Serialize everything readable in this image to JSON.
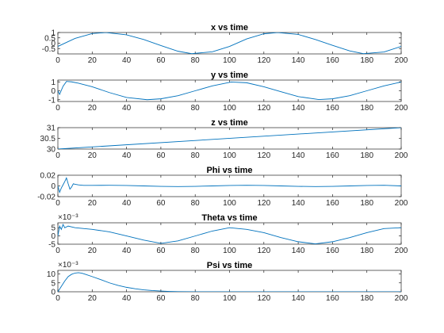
{
  "chart_data": [
    {
      "type": "line",
      "title": "x vs time",
      "xlim": [
        0,
        200
      ],
      "ylim": [
        -1,
        1
      ],
      "xticks": [
        "0",
        "20",
        "40",
        "60",
        "80",
        "100",
        "120",
        "140",
        "160",
        "180",
        "200"
      ],
      "yticks": [
        {
          "v": -0.5,
          "label": "-0.5"
        },
        {
          "v": 0,
          "label": "0"
        },
        {
          "v": 0.5,
          "label": "0.5"
        },
        {
          "v": 1,
          "label": "1"
        }
      ],
      "multiplier": "",
      "x": [
        0,
        10,
        20,
        28,
        40,
        50,
        60,
        70,
        78,
        90,
        100,
        110,
        120,
        128,
        140,
        150,
        160,
        170,
        178,
        190,
        200
      ],
      "y": [
        -0.3,
        0.45,
        0.9,
        1.0,
        0.78,
        0.35,
        -0.22,
        -0.75,
        -0.98,
        -0.8,
        -0.3,
        0.4,
        0.88,
        1.0,
        0.82,
        0.35,
        -0.2,
        -0.72,
        -0.98,
        -0.82,
        -0.3
      ],
      "color": "#0072bd"
    },
    {
      "type": "line",
      "title": "y vs time",
      "xlim": [
        0,
        200
      ],
      "ylim": [
        -1.2,
        1.2
      ],
      "xticks": [
        "0",
        "20",
        "40",
        "60",
        "80",
        "100",
        "120",
        "140",
        "160",
        "180",
        "200"
      ],
      "yticks": [
        {
          "v": -1,
          "label": "-1"
        },
        {
          "v": 0,
          "label": "0"
        },
        {
          "v": 1,
          "label": "1"
        }
      ],
      "multiplier": "",
      "x": [
        0,
        1,
        3,
        5,
        8,
        12,
        20,
        30,
        40,
        52,
        60,
        70,
        80,
        90,
        101,
        110,
        120,
        130,
        140,
        152,
        160,
        170,
        180,
        190,
        200
      ],
      "y": [
        0,
        -0.4,
        0.5,
        1.05,
        1.0,
        0.85,
        0.45,
        -0.2,
        -0.75,
        -1.0,
        -0.9,
        -0.55,
        0.0,
        0.55,
        0.98,
        0.9,
        0.45,
        -0.1,
        -0.65,
        -0.98,
        -0.9,
        -0.55,
        0.0,
        0.55,
        0.98
      ],
      "color": "#0072bd"
    },
    {
      "type": "line",
      "title": "z vs  time",
      "xlim": [
        0,
        200
      ],
      "ylim": [
        30,
        31
      ],
      "xticks": [
        "0",
        "20",
        "40",
        "60",
        "80",
        "100",
        "120",
        "140",
        "160",
        "180",
        "200"
      ],
      "yticks": [
        {
          "v": 30,
          "label": "30"
        },
        {
          "v": 30.5,
          "label": "30.5"
        },
        {
          "v": 31,
          "label": "31"
        }
      ],
      "multiplier": "",
      "x": [
        0,
        200
      ],
      "y": [
        30,
        31
      ],
      "color": "#0072bd"
    },
    {
      "type": "line",
      "title": "Phi vs time",
      "xlim": [
        0,
        200
      ],
      "ylim": [
        -0.02,
        0.02
      ],
      "xticks": [
        "0",
        "20",
        "40",
        "60",
        "80",
        "100",
        "120",
        "140",
        "160",
        "180",
        "200"
      ],
      "yticks": [
        {
          "v": -0.02,
          "label": "-0.02"
        },
        {
          "v": 0,
          "label": "0"
        },
        {
          "v": 0.02,
          "label": "0.02"
        }
      ],
      "multiplier": "",
      "x": [
        0,
        1,
        2,
        3,
        4,
        5,
        6,
        7,
        8,
        9,
        10,
        12,
        15,
        20,
        30,
        40,
        50,
        60,
        70,
        80,
        90,
        100,
        110,
        120,
        130,
        140,
        150,
        160,
        170,
        180,
        190,
        200
      ],
      "y": [
        0,
        -0.012,
        -0.004,
        0.002,
        0.008,
        0.015,
        0.004,
        -0.006,
        -0.002,
        0.004,
        0.003,
        0.002,
        0.001,
        0.001,
        0.0012,
        0.0008,
        0.0,
        -0.0008,
        -0.0012,
        -0.0008,
        0.0,
        0.0008,
        0.0012,
        0.0008,
        0.0,
        -0.0008,
        -0.0012,
        -0.0008,
        0.0,
        0.0008,
        0.0012,
        0.0
      ],
      "color": "#0072bd"
    },
    {
      "type": "line",
      "title": "Theta vs time",
      "xlim": [
        0,
        200
      ],
      "ylim": [
        -0.005,
        0.008
      ],
      "xticks": [
        "0",
        "20",
        "40",
        "60",
        "80",
        "100",
        "120",
        "140",
        "160",
        "180",
        "200"
      ],
      "yticks": [
        {
          "v": -0.005,
          "label": "-5"
        },
        {
          "v": 0,
          "label": "0"
        },
        {
          "v": 0.005,
          "label": "5"
        }
      ],
      "multiplier": "×10⁻³",
      "x": [
        0,
        1,
        2,
        3,
        4,
        6,
        8,
        10,
        20,
        30,
        40,
        50,
        60,
        70,
        80,
        90,
        100,
        110,
        120,
        130,
        140,
        150,
        160,
        170,
        180,
        190,
        200
      ],
      "y": [
        0,
        0.006,
        0.004,
        0.007,
        0.005,
        0.006,
        0.0055,
        0.005,
        0.004,
        0.0025,
        0.0,
        -0.0025,
        -0.0045,
        -0.003,
        0.0,
        0.003,
        0.005,
        0.004,
        0.002,
        -0.001,
        -0.0035,
        -0.0048,
        -0.0035,
        -0.001,
        0.002,
        0.0045,
        0.005
      ],
      "color": "#0072bd"
    },
    {
      "type": "line",
      "title": "Psi vs time",
      "xlim": [
        0,
        200
      ],
      "ylim": [
        0,
        0.012
      ],
      "xticks": [
        "0",
        "20",
        "40",
        "60",
        "80",
        "100",
        "120",
        "140",
        "160",
        "180",
        "200"
      ],
      "yticks": [
        {
          "v": 0,
          "label": "0"
        },
        {
          "v": 0.005,
          "label": "5"
        },
        {
          "v": 0.01,
          "label": "10"
        }
      ],
      "multiplier": "×10⁻³",
      "x": [
        0,
        2,
        4,
        6,
        8,
        10,
        12,
        14,
        16,
        20,
        25,
        30,
        35,
        40,
        45,
        50,
        55,
        60,
        65,
        70,
        80,
        90,
        100,
        120,
        140,
        160,
        180,
        200
      ],
      "y": [
        0,
        0.003,
        0.006,
        0.0085,
        0.0098,
        0.0105,
        0.0107,
        0.0104,
        0.0098,
        0.0085,
        0.0068,
        0.005,
        0.0036,
        0.0025,
        0.0017,
        0.0011,
        0.0007,
        0.0004,
        0.0002,
        0.0001,
        5e-05,
        2e-05,
        1e-05,
        0,
        0,
        0,
        0,
        0
      ],
      "color": "#0072bd"
    }
  ]
}
